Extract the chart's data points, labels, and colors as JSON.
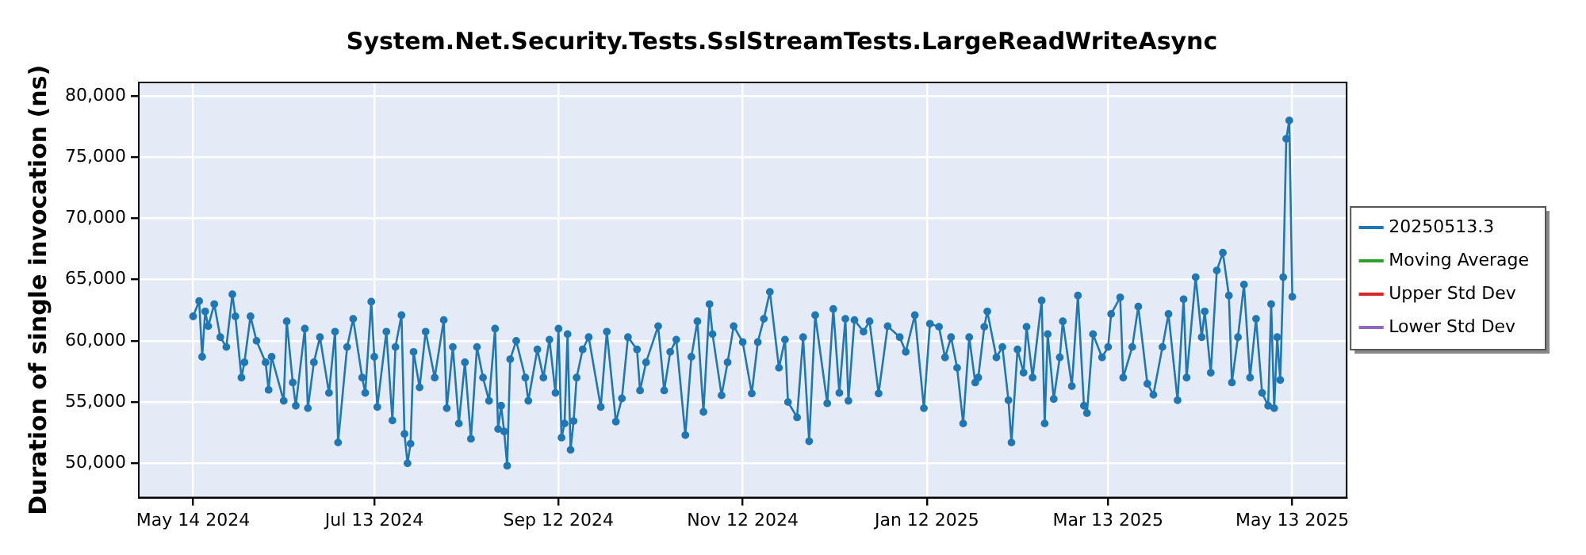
{
  "chart_data": {
    "type": "line",
    "title": "System.Net.Security.Tests.SslStreamTests.LargeReadWriteAsync",
    "ylabel": "Duration of single invocation (ns)",
    "xlim": [
      "2024-04-26",
      "2025-05-31"
    ],
    "xticks": [
      {
        "value": "2024-05-14",
        "label": "May 14 2024"
      },
      {
        "value": "2024-07-13",
        "label": "Jul 13 2024"
      },
      {
        "value": "2024-09-12",
        "label": "Sep 12 2024"
      },
      {
        "value": "2024-11-12",
        "label": "Nov 12 2024"
      },
      {
        "value": "2025-01-12",
        "label": "Jan 12 2025"
      },
      {
        "value": "2025-03-13",
        "label": "Mar 13 2025"
      },
      {
        "value": "2025-05-13",
        "label": "May 13 2025"
      }
    ],
    "ylim": [
      47200,
      81100
    ],
    "yticks": [
      {
        "value": 50000,
        "label": "50,000"
      },
      {
        "value": 55000,
        "label": "55,000"
      },
      {
        "value": 60000,
        "label": "60,000"
      },
      {
        "value": 65000,
        "label": "65,000"
      },
      {
        "value": 70000,
        "label": "70,000"
      },
      {
        "value": 75000,
        "label": "75,000"
      },
      {
        "value": 80000,
        "label": "80,000"
      }
    ],
    "grid": true,
    "legend": "right",
    "marker": "circle",
    "line_style": "solid",
    "series": [
      {
        "name": "20250513.3",
        "color": "#1f77b4",
        "x": [
          "2024-05-14",
          "2024-05-16",
          "2024-05-17",
          "2024-05-18",
          "2024-05-19",
          "2024-05-21",
          "2024-05-23",
          "2024-05-25",
          "2024-05-27",
          "2024-05-28",
          "2024-05-30",
          "2024-05-31",
          "2024-06-02",
          "2024-06-04",
          "2024-06-07",
          "2024-06-08",
          "2024-06-09",
          "2024-06-13",
          "2024-06-14",
          "2024-06-16",
          "2024-06-17",
          "2024-06-20",
          "2024-06-21",
          "2024-06-23",
          "2024-06-25",
          "2024-06-28",
          "2024-06-30",
          "2024-07-01",
          "2024-07-04",
          "2024-07-06",
          "2024-07-09",
          "2024-07-10",
          "2024-07-12",
          "2024-07-13",
          "2024-07-14",
          "2024-07-17",
          "2024-07-19",
          "2024-07-20",
          "2024-07-22",
          "2024-07-23",
          "2024-07-24",
          "2024-07-25",
          "2024-07-26",
          "2024-07-28",
          "2024-07-30",
          "2024-08-02",
          "2024-08-05",
          "2024-08-06",
          "2024-08-08",
          "2024-08-10",
          "2024-08-12",
          "2024-08-14",
          "2024-08-16",
          "2024-08-18",
          "2024-08-20",
          "2024-08-22",
          "2024-08-23",
          "2024-08-24",
          "2024-08-25",
          "2024-08-26",
          "2024-08-27",
          "2024-08-29",
          "2024-09-01",
          "2024-09-02",
          "2024-09-05",
          "2024-09-07",
          "2024-09-09",
          "2024-09-11",
          "2024-09-12",
          "2024-09-13",
          "2024-09-14",
          "2024-09-15",
          "2024-09-16",
          "2024-09-17",
          "2024-09-18",
          "2024-09-20",
          "2024-09-22",
          "2024-09-26",
          "2024-09-28",
          "2024-10-01",
          "2024-10-03",
          "2024-10-05",
          "2024-10-08",
          "2024-10-09",
          "2024-10-11",
          "2024-10-15",
          "2024-10-17",
          "2024-10-19",
          "2024-10-21",
          "2024-10-24",
          "2024-10-26",
          "2024-10-28",
          "2024-10-30",
          "2024-11-01",
          "2024-11-02",
          "2024-11-05",
          "2024-11-07",
          "2024-11-09",
          "2024-11-12",
          "2024-11-15",
          "2024-11-17",
          "2024-11-19",
          "2024-11-21",
          "2024-11-24",
          "2024-11-26",
          "2024-11-27",
          "2024-11-30",
          "2024-12-02",
          "2024-12-04",
          "2024-12-06",
          "2024-12-10",
          "2024-12-12",
          "2024-12-14",
          "2024-12-16",
          "2024-12-17",
          "2024-12-19",
          "2024-12-22",
          "2024-12-24",
          "2024-12-27",
          "2024-12-30",
          "2025-01-03",
          "2025-01-05",
          "2025-01-08",
          "2025-01-11",
          "2025-01-13",
          "2025-01-16",
          "2025-01-18",
          "2025-01-20",
          "2025-01-22",
          "2025-01-24",
          "2025-01-26",
          "2025-01-28",
          "2025-01-29",
          "2025-01-31",
          "2025-02-01",
          "2025-02-04",
          "2025-02-06",
          "2025-02-08",
          "2025-02-09",
          "2025-02-11",
          "2025-02-13",
          "2025-02-14",
          "2025-02-16",
          "2025-02-19",
          "2025-02-20",
          "2025-02-21",
          "2025-02-23",
          "2025-02-25",
          "2025-02-26",
          "2025-03-01",
          "2025-03-03",
          "2025-03-05",
          "2025-03-06",
          "2025-03-08",
          "2025-03-11",
          "2025-03-13",
          "2025-03-14",
          "2025-03-17",
          "2025-03-18",
          "2025-03-21",
          "2025-03-23",
          "2025-03-26",
          "2025-03-28",
          "2025-03-31",
          "2025-04-02",
          "2025-04-05",
          "2025-04-07",
          "2025-04-08",
          "2025-04-11",
          "2025-04-13",
          "2025-04-14",
          "2025-04-16",
          "2025-04-18",
          "2025-04-20",
          "2025-04-22",
          "2025-04-23",
          "2025-04-25",
          "2025-04-27",
          "2025-04-29",
          "2025-05-01",
          "2025-05-03",
          "2025-05-05",
          "2025-05-06",
          "2025-05-07",
          "2025-05-08",
          "2025-05-09",
          "2025-05-10",
          "2025-05-11",
          "2025-05-12",
          "2025-05-13"
        ],
        "values": [
          62000,
          63250,
          58700,
          62400,
          61200,
          63000,
          60300,
          59500,
          63800,
          62000,
          57000,
          58250,
          62000,
          60000,
          58250,
          56000,
          58700,
          55100,
          61600,
          56600,
          54700,
          61000,
          54500,
          58250,
          60300,
          55750,
          60750,
          51700,
          59500,
          61800,
          57000,
          55750,
          63200,
          58700,
          54600,
          60750,
          53500,
          59500,
          62100,
          52400,
          50000,
          51600,
          59100,
          56200,
          60750,
          57000,
          61700,
          54500,
          59500,
          53250,
          58250,
          52000,
          59500,
          57000,
          55100,
          61000,
          52800,
          54700,
          52600,
          49800,
          58500,
          60000,
          57000,
          55100,
          59300,
          57000,
          60100,
          55750,
          61000,
          52100,
          53250,
          60550,
          51100,
          53450,
          57000,
          59300,
          60300,
          54600,
          60750,
          53400,
          55300,
          60300,
          59300,
          55950,
          58250,
          61200,
          55950,
          59100,
          60100,
          52300,
          58700,
          61600,
          54200,
          63000,
          60550,
          55550,
          58250,
          61200,
          59900,
          55700,
          59900,
          61800,
          64000,
          57800,
          60100,
          55000,
          53750,
          60300,
          51800,
          62100,
          54900,
          62600,
          55750,
          61800,
          55100,
          61700,
          60750,
          61600,
          55700,
          61200,
          60300,
          59100,
          62100,
          54500,
          61400,
          61150,
          58650,
          60300,
          57800,
          53250,
          60300,
          56600,
          57000,
          61150,
          62400,
          58650,
          59500,
          55150,
          51700,
          59300,
          57400,
          61150,
          57000,
          63300,
          53250,
          60550,
          55250,
          58650,
          61600,
          56300,
          63700,
          54700,
          54100,
          60550,
          58650,
          59500,
          62200,
          63550,
          57000,
          59500,
          62800,
          56500,
          55600,
          59500,
          62200,
          55150,
          63400,
          57000,
          65200,
          60300,
          62400,
          57400,
          65750,
          67200,
          63700,
          56600,
          60300,
          64600,
          57000,
          61800,
          55750,
          54700,
          63000,
          54500,
          60300,
          56800,
          65200,
          76500,
          78000,
          63600
        ]
      },
      {
        "name": "Moving Average",
        "color": "#2ca02c"
      },
      {
        "name": "Upper Std Dev",
        "color": "#d62728"
      },
      {
        "name": "Lower Std Dev",
        "color": "#9467bd"
      }
    ]
  }
}
